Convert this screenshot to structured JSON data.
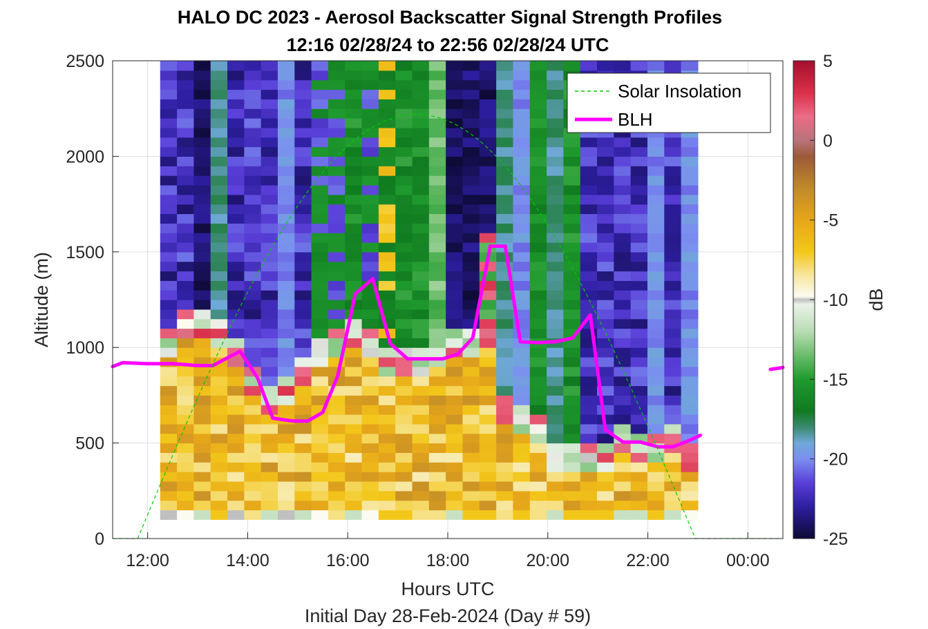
{
  "chart_data": {
    "type": "heatmap",
    "title": "HALO DC 2023 - Aerosol Backscatter Signal Strength Profiles",
    "subtitle": "12:16 02/28/24 to 22:56 02/28/24  UTC",
    "xlabel": "Hours UTC",
    "xlabel2": "Initial Day 28-Feb-2024 (Day # 59)",
    "ylabel": "Altitude (m)",
    "x_ticks": [
      "12:00",
      "14:00",
      "16:00",
      "18:00",
      "20:00",
      "22:00",
      "00:00"
    ],
    "x_tick_hours": [
      12,
      14,
      16,
      18,
      20,
      22,
      24
    ],
    "xlim_hours": [
      11.3,
      24.7
    ],
    "y_ticks": [
      "0",
      "500",
      "1000",
      "1500",
      "2000",
      "2500"
    ],
    "ylim": [
      0,
      2500
    ],
    "grid": true,
    "colorbar": {
      "label": "dB",
      "ticks": [
        "5",
        "0",
        "-5",
        "-10",
        "-15",
        "-20",
        "-25"
      ],
      "range": [
        -25,
        5
      ],
      "stops": [
        [
          5,
          "#a50f2d"
        ],
        [
          3,
          "#d9304a"
        ],
        [
          1.5,
          "#ec6b86"
        ],
        [
          0,
          "#b8737a"
        ],
        [
          -1,
          "#9c5a38"
        ],
        [
          -3,
          "#c08a2a"
        ],
        [
          -5,
          "#e6a61a"
        ],
        [
          -7,
          "#f3c71a"
        ],
        [
          -8.5,
          "#f7e7a0"
        ],
        [
          -9.8,
          "#fbfbf2"
        ],
        [
          -10,
          "#c0c0c0"
        ],
        [
          -10.3,
          "#eaf2ea"
        ],
        [
          -12,
          "#b9dcb3"
        ],
        [
          -13.5,
          "#6bbd6b"
        ],
        [
          -15,
          "#1f9a2e"
        ],
        [
          -17,
          "#107a20"
        ],
        [
          -18,
          "#3a8a70"
        ],
        [
          -19,
          "#6fa8d8"
        ],
        [
          -20,
          "#7b8ff0"
        ],
        [
          -21.5,
          "#5a3fd8"
        ],
        [
          -23,
          "#2d1ea0"
        ],
        [
          -25,
          "#0e0a35"
        ]
      ]
    },
    "legend": {
      "placement": "top-right",
      "entries": [
        {
          "name": "Solar Insolation",
          "color": "#00cc00",
          "style": "dashed"
        },
        {
          "name": "BLH",
          "color": "#ff00ff",
          "style": "solid"
        }
      ]
    },
    "heatmap": {
      "x_start_hour": 12.25,
      "x_end_hour": 23.0,
      "alt_min": 100,
      "alt_max": 2500,
      "columns": 32,
      "rows": 48,
      "profiles_note": "Aerosol layer top altitude per column (m)",
      "aerosol_top_m": [
        1050,
        1150,
        1150,
        1100,
        1000,
        850,
        750,
        800,
        900,
        1000,
        1050,
        1100,
        1050,
        950,
        950,
        950,
        1000,
        1050,
        1050,
        1100,
        700,
        650,
        600,
        450,
        450,
        450,
        450,
        550,
        500,
        500,
        550,
        450
      ]
    },
    "series": [
      {
        "name": "BLH",
        "x_hours": [
          11.3,
          11.5,
          12.0,
          12.5,
          13.0,
          13.3,
          13.85,
          14.2,
          14.5,
          14.9,
          15.2,
          15.5,
          15.8,
          16.15,
          16.5,
          16.85,
          17.2,
          17.6,
          17.9,
          18.2,
          18.5,
          18.85,
          19.15,
          19.45,
          19.8,
          20.15,
          20.5,
          20.85,
          21.15,
          21.5,
          21.85,
          22.2,
          22.5,
          22.8,
          23.05
        ],
        "y_m": [
          900,
          920,
          915,
          915,
          905,
          905,
          980,
          840,
          630,
          615,
          615,
          660,
          850,
          1280,
          1360,
          1020,
          940,
          940,
          940,
          965,
          1050,
          1530,
          1530,
          1030,
          1025,
          1030,
          1050,
          1170,
          570,
          505,
          505,
          480,
          480,
          510,
          540
        ]
      },
      {
        "name": "BLH",
        "x_hours": [
          24.45,
          24.7
        ],
        "y_m": [
          885,
          895
        ]
      },
      {
        "name": "Solar Insolation",
        "sunrise_hour": 11.8,
        "sunset_hour": 22.95,
        "peak_m": 2220
      }
    ]
  }
}
